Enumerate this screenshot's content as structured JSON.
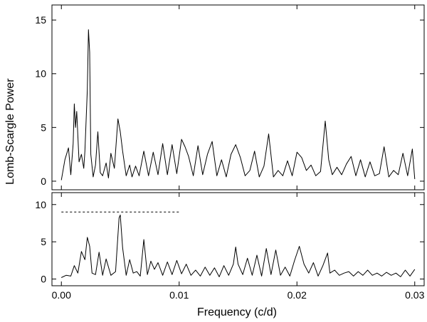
{
  "chart_data": {
    "type": "line",
    "xlabel": "Frequency (c/d)",
    "ylabel": "Lomb-Scargle Power",
    "x_ticks": [
      "0.00",
      "0.01",
      "0.02",
      "0.03"
    ],
    "x_tick_values": [
      0.0,
      0.01,
      0.02,
      0.03
    ],
    "xlim": [
      -0.0008,
      0.0308
    ],
    "grid": false,
    "panels": [
      {
        "ylim": [
          -0.8,
          16.4
        ],
        "y_ticks": [
          "0",
          "5",
          "10",
          "15"
        ],
        "y_tick_values": [
          0,
          5,
          10,
          15
        ],
        "series": [
          {
            "x": [
              0.0,
              0.0003,
              0.0006,
              0.0008,
              0.001,
              0.0011,
              0.0012,
              0.0013,
              0.0015,
              0.0017,
              0.0019,
              0.002,
              0.0022,
              0.0023,
              0.0024,
              0.0025,
              0.0027,
              0.0029,
              0.0031,
              0.0033,
              0.0035,
              0.0038,
              0.004,
              0.0042,
              0.0045,
              0.0048,
              0.005,
              0.0052,
              0.0055,
              0.0058,
              0.006,
              0.0063,
              0.0066,
              0.007,
              0.0074,
              0.0078,
              0.0082,
              0.0086,
              0.009,
              0.0094,
              0.0098,
              0.0102,
              0.0105,
              0.0108,
              0.0112,
              0.0116,
              0.012,
              0.0124,
              0.0128,
              0.0132,
              0.0136,
              0.014,
              0.0144,
              0.0148,
              0.0152,
              0.0156,
              0.016,
              0.0164,
              0.0168,
              0.0172,
              0.0176,
              0.018,
              0.0184,
              0.0188,
              0.0192,
              0.0196,
              0.02,
              0.0204,
              0.0208,
              0.0212,
              0.0216,
              0.022,
              0.0224,
              0.0227,
              0.023,
              0.0234,
              0.0238,
              0.0242,
              0.0246,
              0.025,
              0.0254,
              0.0258,
              0.0262,
              0.0266,
              0.027,
              0.0274,
              0.0278,
              0.0282,
              0.0286,
              0.029,
              0.0294,
              0.0298,
              0.03
            ],
            "y": [
              0.1,
              2.0,
              3.1,
              0.6,
              3.5,
              7.2,
              5.0,
              6.5,
              1.8,
              2.5,
              1.2,
              2.8,
              8.5,
              14.1,
              12.0,
              2.5,
              0.4,
              1.5,
              4.6,
              0.8,
              0.5,
              1.7,
              0.3,
              2.6,
              1.2,
              5.8,
              4.6,
              2.8,
              0.5,
              1.5,
              0.4,
              1.4,
              0.5,
              2.8,
              0.5,
              2.7,
              0.6,
              3.5,
              0.6,
              3.4,
              0.7,
              3.9,
              3.2,
              2.3,
              0.5,
              3.3,
              0.6,
              2.5,
              3.7,
              0.5,
              2.0,
              0.4,
              2.5,
              3.4,
              2.2,
              0.5,
              1.0,
              2.8,
              0.4,
              1.4,
              4.4,
              0.4,
              1.0,
              0.5,
              1.9,
              0.5,
              2.7,
              2.2,
              1.0,
              1.5,
              0.5,
              0.9,
              5.6,
              2.0,
              0.6,
              1.3,
              0.6,
              1.6,
              2.3,
              0.5,
              2.0,
              0.4,
              1.8,
              0.5,
              0.7,
              3.2,
              0.4,
              1.0,
              0.6,
              2.6,
              0.5,
              3.0,
              0.2
            ]
          }
        ]
      },
      {
        "ylim": [
          -0.9,
          11.6
        ],
        "y_ticks": [
          "0",
          "5",
          "10"
        ],
        "y_tick_values": [
          0,
          5,
          10
        ],
        "threshold": {
          "value": 9.0,
          "x_start": 0.0,
          "x_end": 0.01,
          "style": "dashed"
        },
        "series": [
          {
            "x": [
              0.0,
              0.0004,
              0.0008,
              0.0011,
              0.0014,
              0.0017,
              0.002,
              0.0022,
              0.0024,
              0.0026,
              0.0029,
              0.0032,
              0.0035,
              0.0038,
              0.0042,
              0.0046,
              0.0049,
              0.005,
              0.0052,
              0.0055,
              0.0058,
              0.0061,
              0.0064,
              0.0067,
              0.007,
              0.0073,
              0.0076,
              0.0079,
              0.0082,
              0.0086,
              0.009,
              0.0094,
              0.0098,
              0.0102,
              0.0106,
              0.011,
              0.0114,
              0.0118,
              0.0122,
              0.0126,
              0.013,
              0.0134,
              0.0138,
              0.0142,
              0.0146,
              0.0148,
              0.015,
              0.0154,
              0.0158,
              0.0162,
              0.0166,
              0.017,
              0.0174,
              0.0178,
              0.0182,
              0.0186,
              0.019,
              0.0194,
              0.0198,
              0.0202,
              0.0206,
              0.021,
              0.0214,
              0.0218,
              0.0222,
              0.0226,
              0.0228,
              0.0232,
              0.0236,
              0.024,
              0.0244,
              0.0248,
              0.0252,
              0.0256,
              0.026,
              0.0264,
              0.0268,
              0.0272,
              0.0276,
              0.028,
              0.0284,
              0.0288,
              0.0292,
              0.0296,
              0.03
            ],
            "y": [
              0.2,
              0.5,
              0.4,
              1.8,
              0.8,
              3.7,
              2.6,
              5.6,
              4.4,
              0.8,
              0.6,
              3.6,
              0.5,
              2.7,
              0.5,
              1.0,
              8.2,
              8.6,
              4.2,
              0.5,
              2.6,
              0.8,
              1.0,
              0.4,
              5.3,
              0.6,
              2.4,
              1.3,
              2.2,
              0.5,
              2.3,
              0.6,
              2.5,
              0.7,
              2.0,
              0.5,
              1.2,
              0.4,
              1.6,
              0.5,
              1.5,
              0.3,
              1.8,
              0.5,
              2.0,
              4.3,
              2.0,
              0.6,
              2.8,
              0.5,
              3.2,
              0.4,
              4.1,
              0.6,
              3.9,
              0.5,
              1.6,
              0.4,
              2.5,
              4.4,
              2.0,
              0.8,
              2.2,
              0.4,
              1.8,
              3.5,
              0.8,
              1.2,
              0.5,
              0.8,
              1.0,
              0.4,
              1.0,
              0.5,
              1.2,
              0.5,
              0.8,
              0.4,
              0.9,
              0.5,
              0.8,
              0.3,
              1.2,
              0.4,
              1.3
            ]
          }
        ]
      }
    ]
  }
}
